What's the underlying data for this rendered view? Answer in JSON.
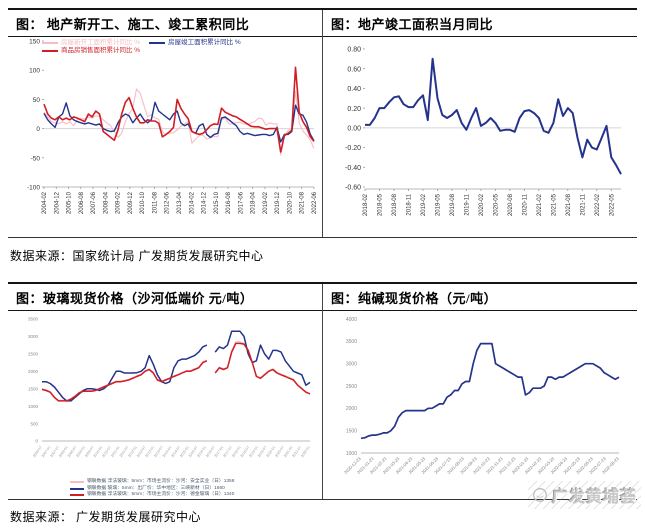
{
  "sources": {
    "top": "数据来源：国家统计局 广发期货发展研究中心",
    "bottom": "数据来源： 广发期货发展研究中心"
  },
  "watermark": {
    "text": "广发黄埔荟",
    "logo": "gf-huangpu-club-circle-logo"
  },
  "colors": {
    "red": "#D01E24",
    "pink": "#F5BDC5",
    "navy": "#24338C",
    "accent_black": "#151515"
  },
  "chart_data": [
    {
      "type": "line",
      "title": "图： 地产新开工、施工、竣工累积同比",
      "ylim": [
        -100,
        150
      ],
      "yticks": [
        150,
        100,
        50,
        0,
        -50,
        -100
      ],
      "zero": 0,
      "grid": false,
      "legend_position": "top-left-inside",
      "legend_rows": [
        [
          0,
          1
        ],
        [
          2
        ]
      ],
      "xticks": [
        "2004-02",
        "2004-12",
        "2005-10",
        "2006-08",
        "2007-06",
        "2008-04",
        "2009-02",
        "2009-12",
        "2010-10",
        "2011-08",
        "2012-06",
        "2013-04",
        "2014-02",
        "2014-12",
        "2015-10",
        "2016-08",
        "2017-06",
        "2018-04",
        "2019-02",
        "2019-12",
        "2020-10",
        "2021-08",
        "2022-06"
      ],
      "series": [
        {
          "id": "new-starts",
          "name": "房屋新开工面积累计同比 %",
          "color": "#F5BDC5",
          "w": 1.1,
          "values": [
            28,
            20,
            12,
            10,
            8,
            12,
            8,
            12,
            5,
            15,
            18,
            16,
            20,
            18,
            22,
            21,
            15,
            10,
            5,
            -5,
            -15,
            -8,
            12,
            25,
            35,
            68,
            60,
            40,
            20,
            24,
            18,
            16,
            -5,
            -10,
            -8,
            -7,
            -2,
            4,
            8,
            12,
            -25,
            -18,
            -12,
            -11,
            -18,
            -16,
            -13,
            -14,
            15,
            18,
            8,
            8,
            10,
            11,
            8,
            7,
            10,
            12,
            18,
            17,
            6,
            10,
            8,
            8,
            -45,
            -12,
            -3,
            -1,
            64,
            10,
            -4,
            -11,
            -20,
            -34
          ]
        },
        {
          "id": "completions",
          "name": "房屋竣工面积累计同比 %",
          "color": "#24338C",
          "w": 1.4,
          "values": [
            26,
            15,
            8,
            2,
            20,
            25,
            44,
            22,
            15,
            12,
            10,
            8,
            10,
            8,
            6,
            8,
            0,
            -3,
            -5,
            -4,
            10,
            20,
            25,
            22,
            10,
            18,
            25,
            15,
            10,
            15,
            45,
            30,
            25,
            20,
            15,
            25,
            30,
            10,
            5,
            8,
            -5,
            -8,
            5,
            8,
            -10,
            -15,
            -10,
            -8,
            18,
            20,
            15,
            10,
            5,
            -5,
            -10,
            -8,
            -10,
            -12,
            -11,
            -10,
            -10,
            -12,
            -10,
            2,
            -23,
            -10,
            -10,
            -5,
            40,
            25,
            23,
            11,
            -10,
            -21
          ]
        },
        {
          "id": "sales",
          "name": "商品房销售面积累计同比 %",
          "color": "#D01E24",
          "w": 1.6,
          "values": [
            42,
            25,
            18,
            15,
            20,
            15,
            18,
            15,
            20,
            18,
            15,
            12,
            25,
            20,
            30,
            25,
            -5,
            -10,
            -15,
            -20,
            -2,
            25,
            45,
            53,
            35,
            20,
            10,
            10,
            15,
            13,
            13,
            9,
            -14,
            -10,
            -5,
            2,
            50,
            35,
            25,
            17,
            -5,
            -8,
            -10,
            -8,
            -2,
            5,
            8,
            7,
            35,
            28,
            25,
            22,
            20,
            16,
            12,
            8,
            4,
            3,
            3,
            1,
            -1,
            0,
            0,
            0,
            -40,
            -12,
            -8,
            -3,
            105,
            28,
            12,
            2,
            -14,
            -22
          ]
        }
      ]
    },
    {
      "type": "line",
      "title": "图：地产竣工面积当月同比",
      "ylim": [
        -0.62,
        0.84
      ],
      "yticks": [
        0.8,
        0.6,
        0.4,
        0.2,
        0.0,
        -0.2,
        -0.4,
        -0.6
      ],
      "zero": 0,
      "grid": false,
      "xtick_end": 0.962,
      "xticks": [
        "2018-02",
        "2018-05",
        "2018-08",
        "2018-11",
        "2019-02",
        "2019-05",
        "2019-08",
        "2019-11",
        "2020-02",
        "2020-05",
        "2020-08",
        "2020-11",
        "2021-02",
        "2021-05",
        "2021-08",
        "2021-11",
        "2022-02",
        "2022-05"
      ],
      "series": [
        {
          "id": "completion-monthly-yoy",
          "name": "地产竣工面积当月同比",
          "color": "#24338C",
          "w": 2,
          "values": [
            0.03,
            0.03,
            0.1,
            0.2,
            0.2,
            0.26,
            0.31,
            0.32,
            0.24,
            0.21,
            0.21,
            0.28,
            0.33,
            0.08,
            0.7,
            0.3,
            0.13,
            0.1,
            0.13,
            0.18,
            0.05,
            -0.02,
            0.1,
            0.2,
            0.02,
            0.05,
            0.1,
            0.05,
            -0.03,
            -0.02,
            -0.02,
            -0.04,
            0.1,
            0.17,
            0.18,
            0.15,
            0.1,
            -0.03,
            -0.05,
            0.05,
            0.29,
            0.12,
            0.2,
            0.15,
            -0.1,
            -0.3,
            -0.12,
            -0.2,
            -0.22,
            -0.1,
            0.02,
            -0.3,
            -0.38,
            -0.47
          ]
        }
      ]
    },
    {
      "type": "line",
      "title": "图：玻璃现货价格（沙河低端价 元/吨）",
      "ylim": [
        0,
        3500
      ],
      "yticks": [
        3500,
        3000,
        2500,
        2000,
        1500,
        1000,
        500,
        0
      ],
      "grid": false,
      "legend_position": "bottom-center",
      "legend_rows": [
        [
          0
        ],
        [
          1
        ],
        [
          2
        ]
      ],
      "xticks": [
        "2006-07",
        "2007-01",
        "2007-07",
        "2008-01",
        "2008-07",
        "2009-01",
        "2009-07",
        "2010-01",
        "2010-07",
        "2011-01",
        "2011-07",
        "2012-01",
        "2012-07",
        "2013-01",
        "2013-07",
        "2014-01",
        "2014-07",
        "2015-01",
        "2015-07",
        "2016-01",
        "2016-07",
        "2017-01",
        "2017-07",
        "2018-01",
        "2018-07",
        "2019-01",
        "2019-07",
        "2020-01",
        "2020-07",
        "2021-01",
        "2021-07",
        "2022-01"
      ],
      "series": [
        {
          "id": "anquan-shiye",
          "name": "钢联数据 浮法玻璃：5mm：市场主流价：沙河：安全实业（日）1358",
          "color": "#F5BDC5",
          "w": 1.1,
          "values": [
            1500,
            1470,
            1420,
            1270,
            1170,
            1170,
            1170,
            1220,
            1300,
            1400,
            1450,
            1450,
            1450,
            1470,
            1520,
            1570,
            1620,
            1670,
            1720,
            1720,
            1740,
            1770,
            1820,
            1870,
            1920,
            2020,
            2070,
            1970,
            1770,
            1720,
            1770,
            1820,
            1870,
            1920,
            1970,
            2020,
            2020,
            2070,
            2120,
            2270,
            2320,
            null,
            1970,
            2120,
            2070,
            2120,
            2600,
            2850,
            2850,
            2800,
            2620,
            2270,
            1870,
            1820,
            1920,
            2020,
            2070,
            1970,
            1920,
            1870,
            1820,
            1770,
            1620,
            1520,
            1420,
            1360
          ]
        },
        {
          "id": "sanxia-xincai",
          "name": "钢联数据 玻璃：5mm：出厂价：华中地区：三峡新材（日）1660",
          "color": "#24338C",
          "w": 1.5,
          "values": [
            1700,
            1700,
            1650,
            1550,
            1400,
            1250,
            1150,
            1150,
            1250,
            1350,
            1450,
            1500,
            1500,
            1480,
            1450,
            1500,
            1600,
            1800,
            2000,
            2000,
            1950,
            1950,
            1950,
            1960,
            2000,
            2100,
            2450,
            2200,
            1900,
            1700,
            1650,
            1700,
            2100,
            2300,
            2350,
            2350,
            2400,
            2450,
            2550,
            2700,
            2750,
            null,
            2550,
            2700,
            2650,
            2750,
            3150,
            3150,
            3150,
            3000,
            2500,
            2250,
            2300,
            2750,
            2500,
            2350,
            2600,
            2600,
            2550,
            2300,
            2150,
            2000,
            1950,
            1900,
            1600,
            1680
          ]
        },
        {
          "id": "dejin-boli",
          "name": "钢联数据 浮法玻璃：5mm：市场主流价：沙河：德金玻璃（日）1340",
          "color": "#D01E24",
          "w": 1.5,
          "values": [
            1480,
            1450,
            1400,
            1250,
            1150,
            1150,
            1150,
            1200,
            1280,
            1380,
            1430,
            1430,
            1430,
            1450,
            1500,
            1550,
            1600,
            1650,
            1700,
            1700,
            1720,
            1750,
            1800,
            1850,
            1900,
            2000,
            2050,
            1950,
            1750,
            1700,
            1750,
            1800,
            1850,
            1900,
            1950,
            2000,
            2000,
            2050,
            2100,
            2250,
            2300,
            null,
            1950,
            2100,
            2050,
            2100,
            2550,
            2800,
            2800,
            2780,
            2600,
            2250,
            1850,
            1800,
            1900,
            2000,
            2050,
            1950,
            1900,
            1850,
            1800,
            1750,
            1600,
            1500,
            1400,
            1350
          ]
        }
      ]
    },
    {
      "type": "line",
      "title": "图：纯碱现货价格（元/吨）",
      "ylim": [
        1000,
        4000
      ],
      "yticks": [
        4000,
        3500,
        3000,
        2500,
        2000,
        1500,
        1000
      ],
      "grid": false,
      "xticks": [
        "2020-12-23",
        "2021-01-23",
        "2021-02-23",
        "2021-03-23",
        "2021-04-23",
        "2021-05-23",
        "2021-06-23",
        "2021-07-23",
        "2021-08-23",
        "2021-09-23",
        "2021-10-23",
        "2021-11-23",
        "2021-12-23",
        "2022-01-23",
        "2022-02-23",
        "2022-03-23",
        "2022-04-23",
        "2022-05-23",
        "2022-06-23",
        "2022-07-23",
        "2022-08-23"
      ],
      "series": [
        {
          "id": "soda-ash-spot",
          "name": "纯碱现货价格",
          "color": "#24338C",
          "w": 1.7,
          "values": [
            1330,
            1340,
            1380,
            1400,
            1400,
            1420,
            1450,
            1450,
            1500,
            1600,
            1800,
            1900,
            1950,
            1950,
            1950,
            1950,
            1950,
            1950,
            2000,
            2000,
            2050,
            2100,
            2100,
            2250,
            2300,
            2400,
            2400,
            2550,
            2600,
            2600,
            3000,
            3300,
            3450,
            3450,
            3450,
            3450,
            3000,
            2950,
            2900,
            2850,
            2800,
            2750,
            2700,
            2700,
            2300,
            2350,
            2450,
            2450,
            2450,
            2500,
            2700,
            2700,
            2650,
            2700,
            2700,
            2750,
            2800,
            2850,
            2900,
            2950,
            3000,
            3000,
            3000,
            2950,
            2900,
            2800,
            2750,
            2700,
            2650,
            2700
          ]
        }
      ]
    }
  ]
}
